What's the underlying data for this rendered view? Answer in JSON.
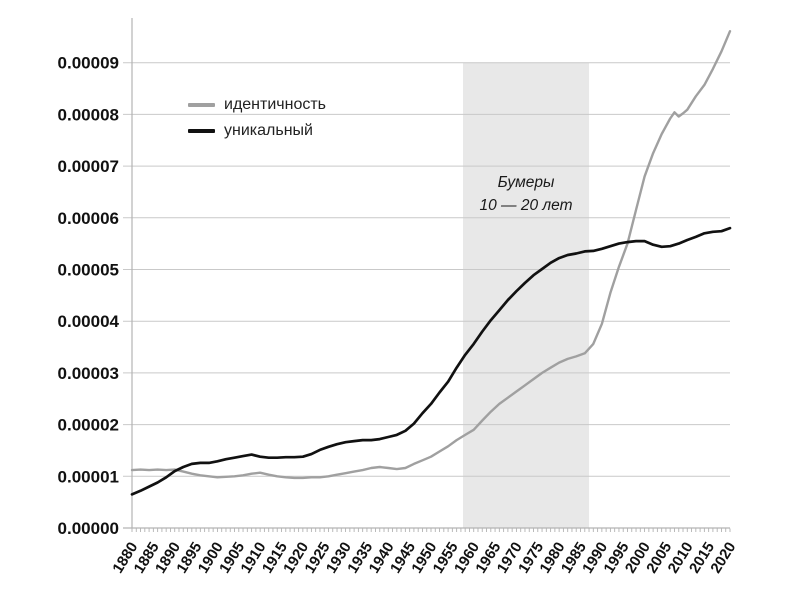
{
  "figure": {
    "background": "#ffffff",
    "text_color": "#111111",
    "grid_color": "#c9c9c9",
    "axis_color": "#b3b3b3"
  },
  "annotation": {
    "line1": "Бумеры",
    "line2": "10 — 20 лет"
  },
  "chart_data": {
    "type": "line",
    "title": "",
    "xlabel": "",
    "ylabel": "",
    "grid": "horizontal",
    "legend_position": "upper-left-inside",
    "x_range": [
      1880,
      2020
    ],
    "x_tick_labels": [
      "1880",
      "1885",
      "1890",
      "1895",
      "1900",
      "1905",
      "1910",
      "1915",
      "1920",
      "1925",
      "1930",
      "1935",
      "1940",
      "1945",
      "1950",
      "1955",
      "1960",
      "1965",
      "1970",
      "1975",
      "1980",
      "1985",
      "1990",
      "1995",
      "2000",
      "2005",
      "2010",
      "2015",
      "2020"
    ],
    "y_tick_labels": [
      "0.00000",
      "0.00001",
      "0.00002",
      "0.00003",
      "0.00004",
      "0.00005",
      "0.00006",
      "0.00007",
      "0.00008",
      "0.00009"
    ],
    "y_tick_unit": 1e-05,
    "ylim": [
      0,
      9.8e-05
    ],
    "y_value_scale": 1e-05,
    "band": {
      "x_start": 1957.5,
      "x_end": 1987,
      "fill": "#e8e8e8",
      "label_line1": "Бумеры",
      "label_line2": "10 — 20 лет"
    },
    "series": [
      {
        "name": "идентичность",
        "color": "#a0a0a0",
        "width": 2.4,
        "x": [
          1880,
          1882,
          1884,
          1886,
          1888,
          1890,
          1892,
          1894,
          1896,
          1898,
          1900,
          1902,
          1904,
          1906,
          1908,
          1910,
          1912,
          1914,
          1916,
          1918,
          1920,
          1922,
          1924,
          1926,
          1928,
          1930,
          1932,
          1934,
          1936,
          1938,
          1940,
          1942,
          1944,
          1946,
          1948,
          1950,
          1952,
          1954,
          1956,
          1958,
          1960,
          1962,
          1964,
          1966,
          1968,
          1970,
          1972,
          1974,
          1976,
          1978,
          1980,
          1982,
          1984,
          1986,
          1988,
          1990,
          1992,
          1994,
          1996,
          1998,
          2000,
          2002,
          2004,
          2006,
          2007,
          2008,
          2009,
          2010,
          2012,
          2014,
          2016,
          2018,
          2020
        ],
        "values_x1e5": [
          1.12,
          1.13,
          1.12,
          1.13,
          1.12,
          1.13,
          1.09,
          1.05,
          1.02,
          1.0,
          0.98,
          0.99,
          1.0,
          1.02,
          1.05,
          1.07,
          1.03,
          1.0,
          0.98,
          0.97,
          0.97,
          0.98,
          0.98,
          1.0,
          1.03,
          1.06,
          1.09,
          1.12,
          1.16,
          1.18,
          1.16,
          1.14,
          1.16,
          1.24,
          1.31,
          1.38,
          1.48,
          1.58,
          1.7,
          1.8,
          1.9,
          2.08,
          2.25,
          2.4,
          2.52,
          2.64,
          2.76,
          2.88,
          3.0,
          3.1,
          3.2,
          3.27,
          3.32,
          3.38,
          3.56,
          3.95,
          4.55,
          5.05,
          5.5,
          6.15,
          6.8,
          7.25,
          7.62,
          7.92,
          8.04,
          7.96,
          8.02,
          8.09,
          8.35,
          8.57,
          8.88,
          9.22,
          9.61
        ]
      },
      {
        "name": "уникальный",
        "color": "#111111",
        "width": 2.7,
        "x": [
          1880,
          1882,
          1884,
          1886,
          1888,
          1890,
          1892,
          1894,
          1896,
          1898,
          1900,
          1902,
          1904,
          1906,
          1908,
          1910,
          1912,
          1914,
          1916,
          1918,
          1920,
          1922,
          1924,
          1926,
          1928,
          1930,
          1932,
          1934,
          1936,
          1938,
          1940,
          1942,
          1944,
          1946,
          1948,
          1950,
          1952,
          1954,
          1956,
          1958,
          1960,
          1962,
          1964,
          1966,
          1968,
          1970,
          1972,
          1974,
          1976,
          1978,
          1980,
          1982,
          1984,
          1986,
          1988,
          1990,
          1992,
          1994,
          1996,
          1998,
          2000,
          2002,
          2004,
          2006,
          2008,
          2010,
          2012,
          2014,
          2016,
          2018,
          2020
        ],
        "values_x1e5": [
          0.65,
          0.72,
          0.8,
          0.88,
          0.98,
          1.1,
          1.18,
          1.24,
          1.26,
          1.26,
          1.29,
          1.33,
          1.36,
          1.39,
          1.42,
          1.38,
          1.36,
          1.36,
          1.37,
          1.37,
          1.38,
          1.43,
          1.51,
          1.57,
          1.62,
          1.66,
          1.68,
          1.7,
          1.7,
          1.72,
          1.76,
          1.8,
          1.88,
          2.02,
          2.22,
          2.4,
          2.62,
          2.83,
          3.1,
          3.35,
          3.56,
          3.8,
          4.02,
          4.21,
          4.41,
          4.58,
          4.74,
          4.89,
          5.01,
          5.13,
          5.22,
          5.28,
          5.31,
          5.35,
          5.36,
          5.4,
          5.45,
          5.5,
          5.53,
          5.55,
          5.55,
          5.48,
          5.44,
          5.45,
          5.5,
          5.57,
          5.63,
          5.7,
          5.73,
          5.74,
          5.8
        ]
      }
    ]
  }
}
